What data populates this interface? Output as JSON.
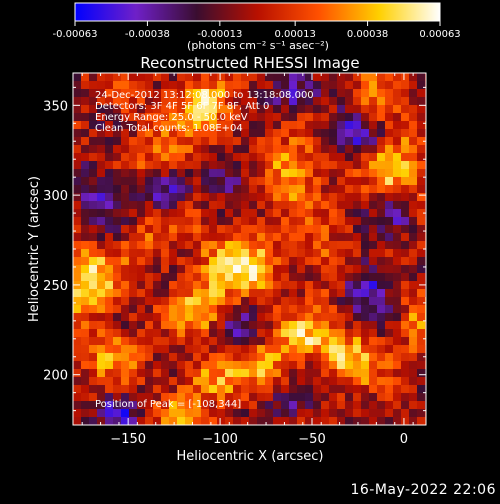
{
  "chart_data": {
    "type": "heatmap",
    "title": "Reconstructed RHESSI Image",
    "xlabel": "Heliocentric X (arcsec)",
    "ylabel": "Heliocentric Y (arcsec)",
    "xlim": [
      -180,
      12
    ],
    "ylim": [
      172,
      368
    ],
    "xticks": [
      -150,
      -100,
      -50,
      0
    ],
    "yticks": [
      200,
      250,
      300,
      350
    ],
    "colorbar": {
      "range": [
        -0.00063,
        0.00063
      ],
      "ticks": [
        -0.00063,
        -0.00038,
        -0.00013,
        0.00013,
        0.00038,
        0.00063
      ],
      "tick_labels": [
        "-0.00063",
        "-0.00038",
        "-0.00013",
        "0.00013",
        "0.00038",
        "0.00063"
      ],
      "unit_label": "(photons cm⁻² s⁻¹ asec⁻²)",
      "colors": [
        "#0000ff",
        "#6f20c8",
        "#3a0d30",
        "#b81000",
        "#ff5000",
        "#ffd000",
        "#ffffff"
      ]
    },
    "annotations": [
      "24-Dec-2012 13:12:08.000 to 13:18:08.000",
      "Detectors: 3F 4F 5F 6F 7F 8F, Att 0",
      "Energy Range: 25.0 - 50.0 keV",
      "Clean     Total counts: 1.08E+04"
    ],
    "peak_label": "Position of Peak = [-108,344]",
    "peak": {
      "x": -108,
      "y": 344
    },
    "blobs": [
      {
        "x": -108,
        "y": 350,
        "sx": 9,
        "sy": 8,
        "amp": 0.00063
      },
      {
        "x": -90,
        "y": 262,
        "sx": 14,
        "sy": 12,
        "amp": 0.00052
      },
      {
        "x": -112,
        "y": 238,
        "sx": 10,
        "sy": 10,
        "amp": 0.0004
      },
      {
        "x": -172,
        "y": 252,
        "sx": 12,
        "sy": 14,
        "amp": 0.00048
      },
      {
        "x": -160,
        "y": 212,
        "sx": 11,
        "sy": 9,
        "amp": 0.00032
      },
      {
        "x": -130,
        "y": 325,
        "sx": 12,
        "sy": 9,
        "amp": 0.00028
      },
      {
        "x": -60,
        "y": 312,
        "sx": 12,
        "sy": 14,
        "amp": 0.0004
      },
      {
        "x": -5,
        "y": 315,
        "sx": 10,
        "sy": 16,
        "amp": 0.00042
      },
      {
        "x": -15,
        "y": 350,
        "sx": 9,
        "sy": 9,
        "amp": 0.00038
      },
      {
        "x": -40,
        "y": 260,
        "sx": 9,
        "sy": 12,
        "amp": 0.00026
      },
      {
        "x": -30,
        "y": 210,
        "sx": 12,
        "sy": 10,
        "amp": 0.00044
      },
      {
        "x": -55,
        "y": 222,
        "sx": 11,
        "sy": 9,
        "amp": 0.00036
      },
      {
        "x": -75,
        "y": 205,
        "sx": 10,
        "sy": 10,
        "amp": 0.0003
      },
      {
        "x": -105,
        "y": 198,
        "sx": 12,
        "sy": 8,
        "amp": 0.00034
      },
      {
        "x": -120,
        "y": 180,
        "sx": 10,
        "sy": 7,
        "amp": 0.0003
      },
      {
        "x": -140,
        "y": 275,
        "sx": 10,
        "sy": 10,
        "amp": 0.0002
      },
      {
        "x": 8,
        "y": 230,
        "sx": 6,
        "sy": 14,
        "amp": 0.00026
      },
      {
        "x": -150,
        "y": 355,
        "sx": 8,
        "sy": 8,
        "amp": 0.00018
      },
      {
        "x": -130,
        "y": 300,
        "sx": 7,
        "sy": 7,
        "amp": -0.0004
      },
      {
        "x": -25,
        "y": 335,
        "sx": 12,
        "sy": 10,
        "amp": -0.00045
      },
      {
        "x": -95,
        "y": 310,
        "sx": 10,
        "sy": 9,
        "amp": -0.0003
      },
      {
        "x": -20,
        "y": 250,
        "sx": 10,
        "sy": 10,
        "amp": -0.0005
      },
      {
        "x": -5,
        "y": 290,
        "sx": 8,
        "sy": 8,
        "amp": -0.0004
      },
      {
        "x": -165,
        "y": 300,
        "sx": 10,
        "sy": 14,
        "amp": -0.00035
      },
      {
        "x": -155,
        "y": 180,
        "sx": 9,
        "sy": 7,
        "amp": -0.0004
      },
      {
        "x": -60,
        "y": 185,
        "sx": 10,
        "sy": 7,
        "amp": -0.00032
      },
      {
        "x": -60,
        "y": 355,
        "sx": 10,
        "sy": 8,
        "amp": -0.00036
      },
      {
        "x": -90,
        "y": 225,
        "sx": 8,
        "sy": 8,
        "amp": -0.0003
      }
    ]
  },
  "footer": {
    "date": "16-May-2022 22:06"
  }
}
